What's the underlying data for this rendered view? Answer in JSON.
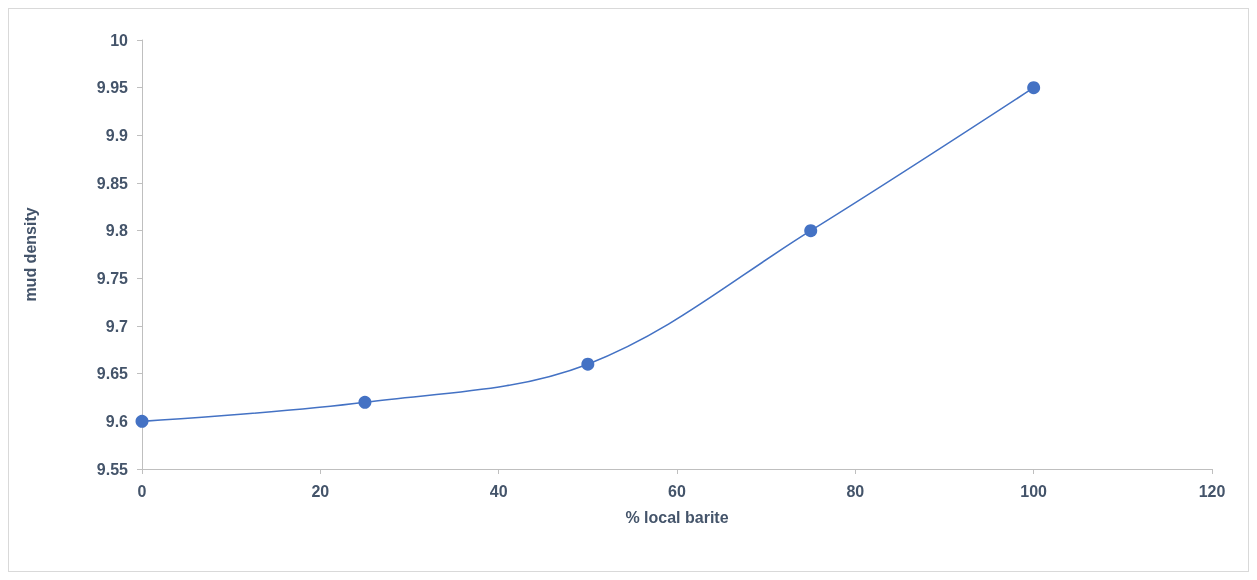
{
  "chart_data": {
    "type": "line",
    "xlabel": "% local barite",
    "ylabel": "mud density",
    "x": [
      0,
      25,
      50,
      75,
      100
    ],
    "series": [
      {
        "color": "#4472c4",
        "values": [
          9.6,
          9.62,
          9.66,
          9.8,
          9.95
        ]
      }
    ],
    "xlim": [
      0,
      120
    ],
    "xticks": [
      0,
      20,
      40,
      60,
      80,
      100,
      120
    ],
    "ylim": [
      9.55,
      10
    ],
    "yticks": [
      9.55,
      9.6,
      9.65,
      9.7,
      9.75,
      9.8,
      9.85,
      9.9,
      9.95,
      10
    ],
    "grid": false,
    "marker": "circle",
    "line_style": "solid"
  }
}
